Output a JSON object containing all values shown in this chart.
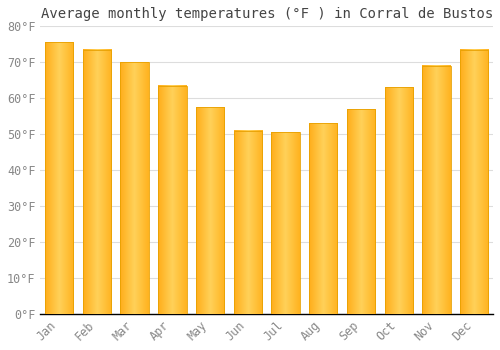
{
  "title": "Average monthly temperatures (°F ) in Corral de Bustos",
  "months": [
    "Jan",
    "Feb",
    "Mar",
    "Apr",
    "May",
    "Jun",
    "Jul",
    "Aug",
    "Sep",
    "Oct",
    "Nov",
    "Dec"
  ],
  "values": [
    75.5,
    73.5,
    70.0,
    63.5,
    57.5,
    51.0,
    50.5,
    53.0,
    57.0,
    63.0,
    69.0,
    73.5
  ],
  "bar_color_left": "#FFB300",
  "bar_color_right": "#FFCC44",
  "bar_color_center": "#FFCC44",
  "bar_edge_color": "#E8A000",
  "background_color": "#FFFFFF",
  "plot_bg_color": "#FFFFFF",
  "grid_color": "#DDDDDD",
  "title_color": "#444444",
  "tick_label_color": "#888888",
  "axis_color": "#000000",
  "ylim": [
    0,
    80
  ],
  "yticks": [
    0,
    10,
    20,
    30,
    40,
    50,
    60,
    70,
    80
  ],
  "ytick_labels": [
    "0°F",
    "10°F",
    "20°F",
    "30°F",
    "40°F",
    "50°F",
    "60°F",
    "70°F",
    "80°F"
  ],
  "title_fontsize": 10,
  "tick_fontsize": 8.5,
  "font_family": "monospace"
}
